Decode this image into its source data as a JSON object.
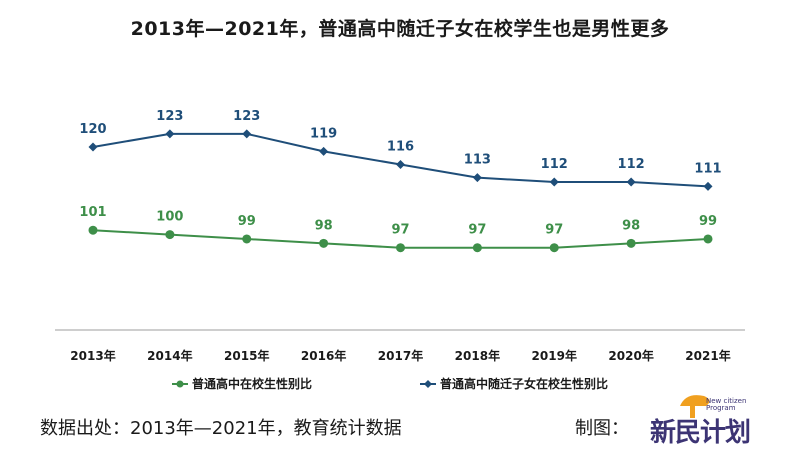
{
  "title": "2013年—2021年，普通高中随迁子女在校学生也是男性更多",
  "footer": {
    "source": "数据出处：2013年—2021年，教育统计数据",
    "made_by": "制图：",
    "logo_text": "新民计划",
    "logo_sub": "New citizen Program"
  },
  "chart_data": {
    "type": "line",
    "title": "2013年—2021年，普通高中随迁子女在校学生也是男性更多",
    "categories": [
      "2013年",
      "2014年",
      "2015年",
      "2016年",
      "2017年",
      "2018年",
      "2019年",
      "2020年",
      "2021年"
    ],
    "series": [
      {
        "name": "普通高中随迁子女在校生性别比",
        "values": [
          120,
          123,
          123,
          119,
          116,
          113,
          112,
          112,
          111
        ],
        "color": "#1f4e79",
        "marker": "diamond"
      },
      {
        "name": "普通高中在校生性别比",
        "values": [
          101,
          100,
          99,
          98,
          97,
          97,
          97,
          98,
          99
        ],
        "color": "#3e8f49",
        "marker": "circle"
      }
    ],
    "legend_position": "bottom",
    "grid": false
  }
}
